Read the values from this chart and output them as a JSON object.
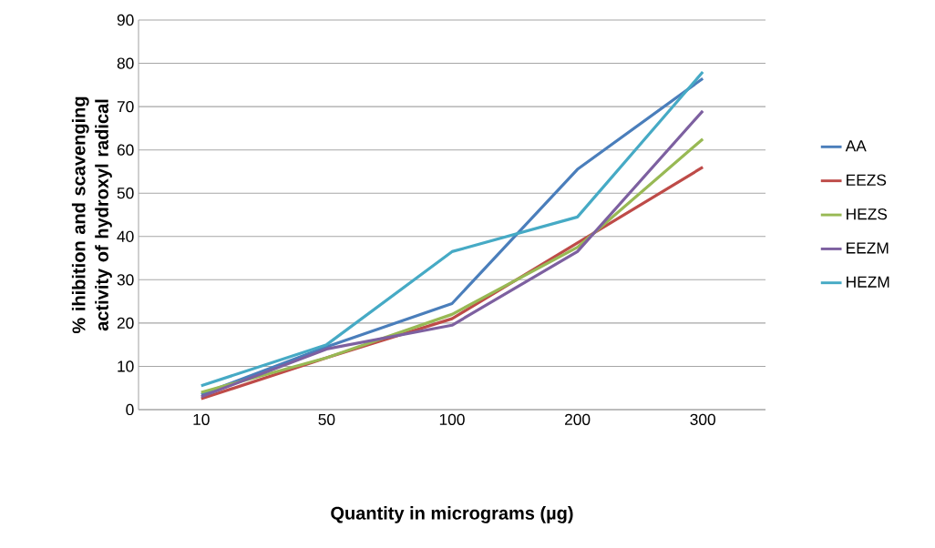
{
  "chart_data": {
    "type": "line",
    "xlabel": "Quantity in micrograms (µg)",
    "ylabel": "% ihibition and scavenging activity of hydroxyl radical",
    "categories": [
      "10",
      "50",
      "100",
      "200",
      "300"
    ],
    "series": [
      {
        "name": "AA",
        "color": "#4a7ebb",
        "values": [
          3.5,
          14.5,
          24.5,
          55.5,
          76.5
        ]
      },
      {
        "name": "EEZS",
        "color": "#be4b48",
        "values": [
          2.5,
          12,
          21,
          38.5,
          56
        ]
      },
      {
        "name": "HEZS",
        "color": "#98b954",
        "values": [
          4,
          12,
          22,
          37.5,
          62.5
        ]
      },
      {
        "name": "EEZM",
        "color": "#7d60a0",
        "values": [
          3,
          14,
          19.5,
          36.5,
          69
        ]
      },
      {
        "name": "HEZM",
        "color": "#46aac5",
        "values": [
          5.5,
          15,
          36.5,
          44.5,
          78
        ]
      }
    ],
    "ylim": [
      0,
      90
    ],
    "yticks": [
      0,
      10,
      20,
      30,
      40,
      50,
      60,
      70,
      80,
      90
    ],
    "grid": "y",
    "legend": "right",
    "marker": "none",
    "line_style": "solid"
  }
}
